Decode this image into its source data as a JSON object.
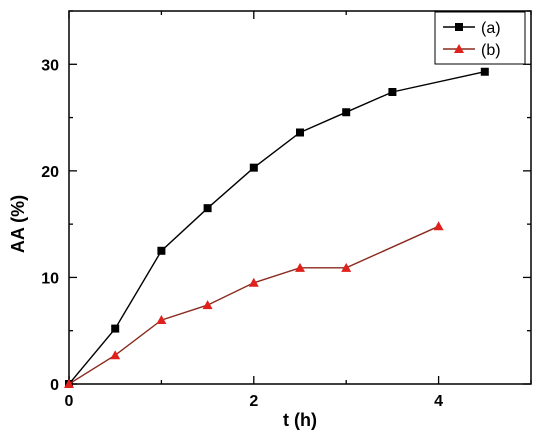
{
  "chart_data": {
    "type": "line",
    "title": "",
    "xlabel": "t (h)",
    "ylabel": "AA (%)",
    "xlim": [
      0,
      5
    ],
    "ylim": [
      0,
      35
    ],
    "xticks": [
      0,
      2,
      4
    ],
    "yticks": [
      0,
      10,
      20,
      30
    ],
    "grid": false,
    "legend_position": "top-right",
    "series": [
      {
        "name": "(a)",
        "color": "#000000",
        "marker": "square",
        "x": [
          0,
          0.5,
          1,
          1.5,
          2,
          2.5,
          3,
          3.5,
          4.5
        ],
        "y": [
          0,
          5.2,
          12.5,
          16.5,
          20.3,
          23.6,
          25.5,
          27.4,
          29.3
        ]
      },
      {
        "name": "(b)",
        "color": "#8B2A1E",
        "marker_color": "#E0201A",
        "marker": "triangle",
        "x": [
          0,
          0.5,
          1,
          1.5,
          2,
          2.5,
          3,
          4
        ],
        "y": [
          0,
          2.7,
          6.0,
          7.4,
          9.5,
          10.9,
          10.9,
          14.8
        ]
      }
    ]
  }
}
